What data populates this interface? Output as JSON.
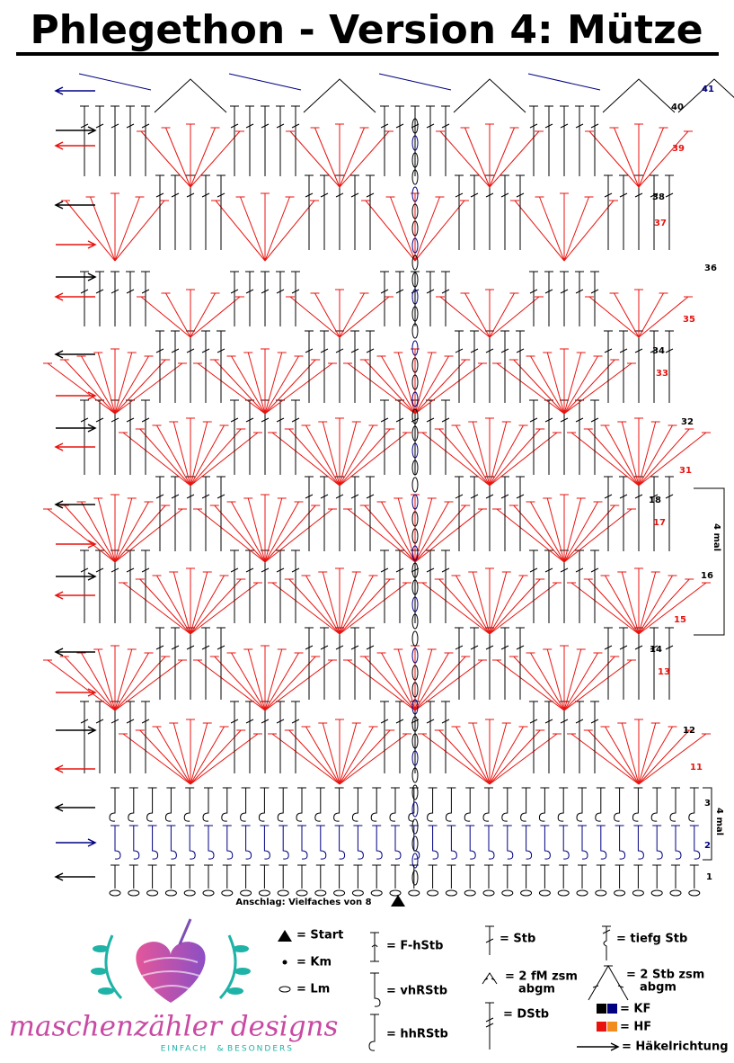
{
  "title": "Phlegethon - Version 4: Mütze",
  "rows": [
    {
      "label": "1",
      "color": "#000000"
    },
    {
      "label": "2",
      "color": "#000080"
    },
    {
      "label": "3",
      "color": "#000000"
    },
    {
      "label": "11",
      "color": "#e8130f"
    },
    {
      "label": "12",
      "color": "#000000"
    },
    {
      "label": "13",
      "color": "#e8130f"
    },
    {
      "label": "14",
      "color": "#000000"
    },
    {
      "label": "15",
      "color": "#e8130f"
    },
    {
      "label": "16",
      "color": "#000000"
    },
    {
      "label": "17",
      "color": "#e8130f"
    },
    {
      "label": "18",
      "color": "#000000"
    },
    {
      "label": "31",
      "color": "#e8130f"
    },
    {
      "label": "32",
      "color": "#000000"
    },
    {
      "label": "33",
      "color": "#e8130f"
    },
    {
      "label": "34",
      "color": "#000000"
    },
    {
      "label": "35",
      "color": "#e8130f"
    },
    {
      "label": "36",
      "color": "#000000"
    },
    {
      "label": "37",
      "color": "#e8130f"
    },
    {
      "label": "38",
      "color": "#000000"
    },
    {
      "label": "39",
      "color": "#e8130f"
    },
    {
      "label": "40",
      "color": "#000000"
    },
    {
      "label": "41",
      "color": "#000080"
    }
  ],
  "notes": {
    "foundation": "Anschlag: Vielfaches von 8",
    "repeat_top": "4 mal",
    "repeat_bottom": "4 mal"
  },
  "legend": {
    "start": "= Start",
    "km": "= Km",
    "lm": "= Lm",
    "fhstb": "= F-hStb",
    "vhrstb": "= vhRStb",
    "hhrstb": "= hhRStb",
    "stb": "= Stb",
    "fm_zsm": "= 2 fM zsm",
    "fm_zsm_2": "abgm",
    "dstb": "= DStb",
    "tiefg": "= tiefg Stb",
    "stb_zsm": "= 2 Stb zsm",
    "stb_zsm_2": "abgm",
    "kf": "= KF",
    "hf": "= HF",
    "direction": "= Häkelrichtung"
  },
  "logo": {
    "name": "maschenzähler designs",
    "tag1": "EINFACH",
    "tag2": "&",
    "tag3": "BESONDERS"
  }
}
